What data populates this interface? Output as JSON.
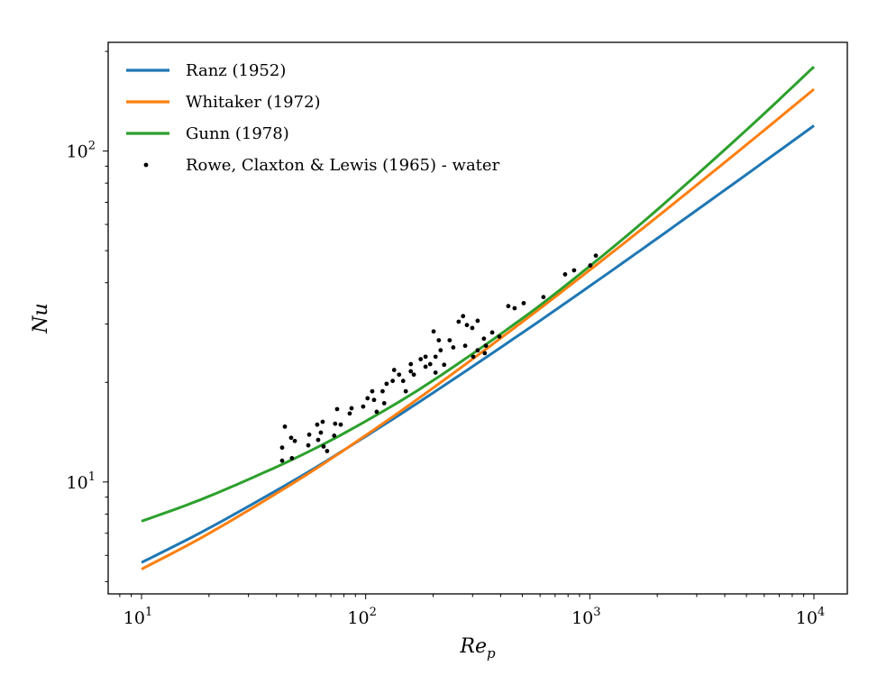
{
  "chart_data": {
    "type": "line",
    "xscale": "log",
    "yscale": "log",
    "xlim": [
      7.1,
      14090
    ],
    "ylim": [
      4.59,
      213
    ],
    "grid": false,
    "legend_position": "top-left",
    "xlabel": {
      "main": "Re",
      "sub": "p"
    },
    "ylabel": "Nu",
    "xticks": [
      {
        "value": 10,
        "base": "10",
        "exp": "1"
      },
      {
        "value": 100,
        "base": "10",
        "exp": "2"
      },
      {
        "value": 1000,
        "base": "10",
        "exp": "3"
      },
      {
        "value": 10000,
        "base": "10",
        "exp": "4"
      }
    ],
    "yticks": [
      {
        "value": 10,
        "base": "10",
        "exp": "1"
      },
      {
        "value": 100,
        "base": "10",
        "exp": "2"
      }
    ],
    "series": [
      {
        "name": "Ranz (1952)",
        "kind": "line",
        "color": "#1f77b4",
        "x": [
          10,
          20,
          50,
          100,
          200,
          500,
          1000,
          2000,
          5000,
          10000
        ],
        "y": [
          5.71,
          7.25,
          10.29,
          13.73,
          18.59,
          28.23,
          39.09,
          54.46,
          84.94,
          119.3
        ]
      },
      {
        "name": "Whitaker (1972)",
        "kind": "line",
        "color": "#ff7f0e",
        "x": [
          10,
          20,
          50,
          100,
          200,
          500,
          1000,
          2000,
          5000,
          10000
        ],
        "y": [
          5.45,
          6.99,
          10.14,
          13.83,
          19.24,
          30.45,
          43.7,
          63.3,
          104.5,
          153.7
        ]
      },
      {
        "name": "Gunn (1978)",
        "kind": "line",
        "color": "#2ca02c",
        "x": [
          10,
          20,
          50,
          100,
          200,
          500,
          1000,
          2000,
          5000,
          10000
        ],
        "y": [
          7.61,
          9.05,
          11.92,
          15.26,
          20.27,
          31.19,
          44.9,
          66.5,
          115.8,
          179.7
        ]
      },
      {
        "name": "Rowe, Claxton & Lewis (1965) - water",
        "kind": "scatter",
        "color": "#000000",
        "x": [
          42.4,
          42.4,
          43.6,
          46.5,
          48.3,
          46.9,
          55.5,
          56.0,
          60.8,
          64.3,
          63.1,
          61.4,
          64.9,
          67.3,
          72.4,
          73.1,
          77.4,
          74.6,
          84.9,
          86.5,
          97.5,
          102,
          109,
          107,
          112,
          119,
          121,
          124,
          134,
          132,
          141,
          147,
          151,
          159,
          159,
          164,
          176,
          185,
          185,
          194,
          205,
          205,
          201,
          212,
          216,
          224,
          237,
          246,
          260,
          272,
          283,
          299,
          316,
          278,
          302,
          316,
          337,
          340,
          344,
          367,
          395,
          433,
          462,
          507,
          621,
          776,
          851,
          1005,
          1064
        ],
        "y": [
          11.6,
          12.7,
          14.7,
          13.6,
          13.3,
          11.8,
          12.9,
          13.9,
          14.9,
          15.2,
          14.1,
          13.4,
          12.8,
          12.4,
          13.8,
          15.0,
          14.9,
          16.6,
          16.1,
          16.7,
          16.9,
          17.9,
          17.7,
          18.8,
          16.3,
          18.8,
          17.3,
          19.8,
          21.8,
          20.2,
          21.1,
          20.2,
          18.8,
          22.7,
          21.6,
          21.1,
          23.5,
          23.9,
          22.3,
          22.7,
          23.9,
          21.4,
          28.5,
          26.8,
          25.0,
          22.6,
          26.8,
          25.5,
          30.5,
          31.7,
          29.8,
          29.2,
          30.7,
          25.8,
          23.9,
          25.0,
          27.1,
          24.5,
          25.8,
          28.3,
          27.5,
          34.0,
          33.5,
          34.7,
          36.2,
          42.4,
          43.6,
          45.1,
          48.3
        ]
      }
    ]
  }
}
